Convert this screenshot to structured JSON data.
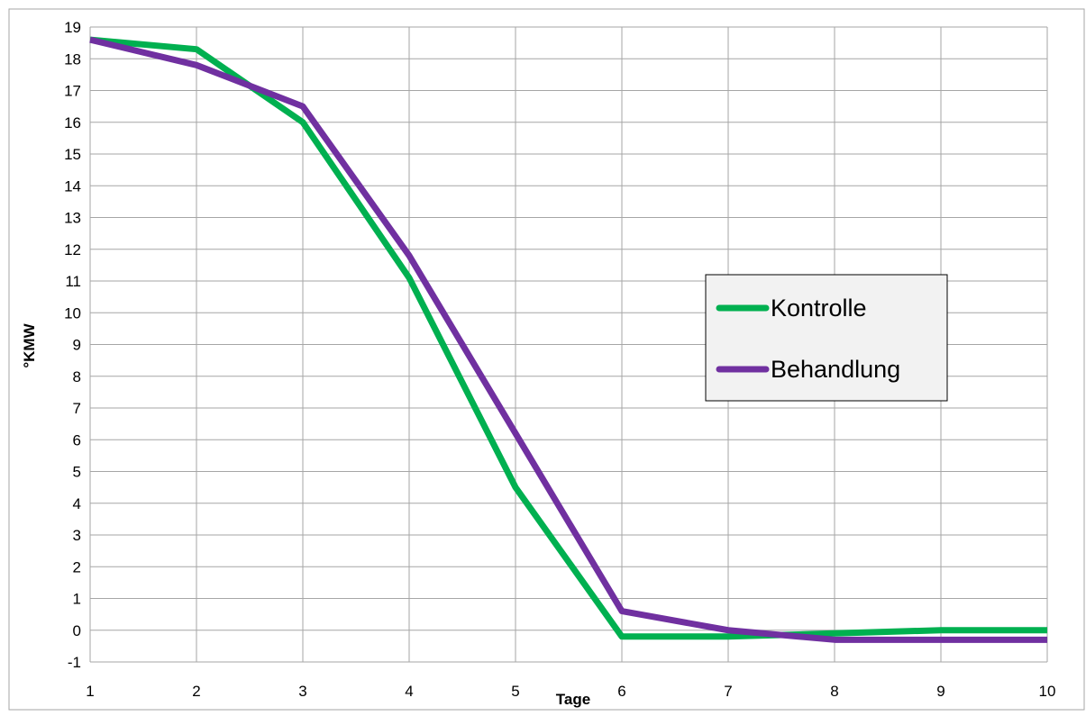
{
  "chart_data": {
    "type": "line",
    "title": "",
    "xlabel": "Tage",
    "ylabel": "°KMW",
    "x": [
      1,
      2,
      3,
      4,
      5,
      6,
      7,
      8,
      9,
      10
    ],
    "xlim": [
      1,
      10
    ],
    "ylim": [
      -1,
      19
    ],
    "yticks": [
      -1,
      0,
      1,
      2,
      3,
      4,
      5,
      6,
      7,
      8,
      9,
      10,
      11,
      12,
      13,
      14,
      15,
      16,
      17,
      18,
      19
    ],
    "grid": true,
    "legend_position": "right",
    "series": [
      {
        "name": "Kontrolle",
        "color": "#00b050",
        "values": [
          18.6,
          18.3,
          16.0,
          11.1,
          4.5,
          -0.2,
          -0.2,
          -0.1,
          0.0,
          0.0
        ]
      },
      {
        "name": "Behandlung",
        "color": "#7030a0",
        "values": [
          18.6,
          17.8,
          16.5,
          11.8,
          6.2,
          0.6,
          0.0,
          -0.3,
          -0.3,
          -0.3
        ]
      }
    ]
  }
}
